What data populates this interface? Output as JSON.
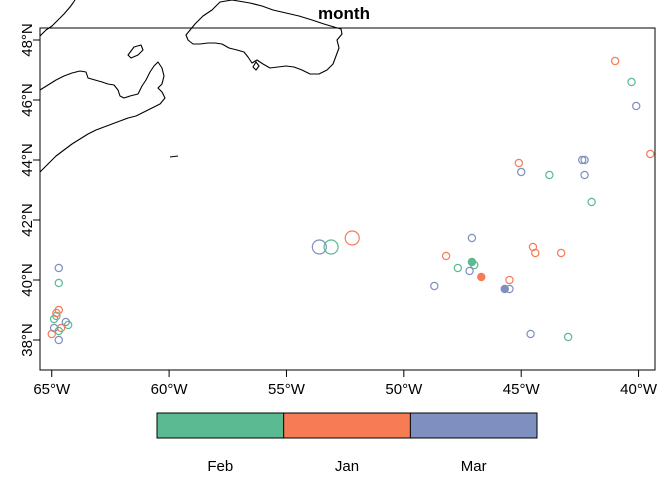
{
  "chart_data": {
    "type": "scatter",
    "title": "month",
    "xlim": [
      -65.5,
      -39.3
    ],
    "ylim": [
      37,
      48.4
    ],
    "x_ticks": [
      -65,
      -60,
      -55,
      -50,
      -45,
      -40
    ],
    "x_tick_labels": [
      "65°W",
      "60°W",
      "55°W",
      "50°W",
      "45°W",
      "40°W"
    ],
    "y_ticks": [
      38,
      40,
      42,
      44,
      46,
      48
    ],
    "y_tick_labels": [
      "38°N",
      "40°N",
      "42°N",
      "44°N",
      "46°N",
      "48°N"
    ],
    "grid": false,
    "coastline": "Nova Scotia, Cape Breton and Newfoundland outlines in the upper left",
    "legend": {
      "placement": "bottom",
      "entries": [
        {
          "label": "Feb",
          "color": "#5BBA92"
        },
        {
          "label": "Jan",
          "color": "#F77B55"
        },
        {
          "label": "Mar",
          "color": "#7F8FC0"
        }
      ]
    },
    "series": [
      {
        "name": "Feb",
        "color": "#5BBA92",
        "points": [
          {
            "lon": -64.7,
            "lat": 39.9
          },
          {
            "lon": -64.9,
            "lat": 38.7
          },
          {
            "lon": -64.8,
            "lat": 38.8
          },
          {
            "lon": -64.3,
            "lat": 38.5
          },
          {
            "lon": -64.7,
            "lat": 38.3
          },
          {
            "lon": -53.1,
            "lat": 41.1,
            "size": "large"
          },
          {
            "lon": -47.7,
            "lat": 40.4
          },
          {
            "lon": -47.0,
            "lat": 40.5
          },
          {
            "lon": -47.1,
            "lat": 40.6,
            "filled": true
          },
          {
            "lon": -43.8,
            "lat": 43.5
          },
          {
            "lon": -42.0,
            "lat": 42.6
          },
          {
            "lon": -43.0,
            "lat": 38.1
          },
          {
            "lon": -40.3,
            "lat": 46.6
          }
        ]
      },
      {
        "name": "Jan",
        "color": "#F77B55",
        "points": [
          {
            "lon": -64.7,
            "lat": 39.0
          },
          {
            "lon": -64.8,
            "lat": 38.9
          },
          {
            "lon": -64.6,
            "lat": 38.4
          },
          {
            "lon": -65.0,
            "lat": 38.2
          },
          {
            "lon": -52.2,
            "lat": 41.4,
            "size": "large"
          },
          {
            "lon": -48.2,
            "lat": 40.8
          },
          {
            "lon": -46.7,
            "lat": 40.1,
            "filled": true
          },
          {
            "lon": -45.5,
            "lat": 40.0
          },
          {
            "lon": -44.4,
            "lat": 40.9
          },
          {
            "lon": -44.5,
            "lat": 41.1
          },
          {
            "lon": -43.3,
            "lat": 40.9
          },
          {
            "lon": -45.1,
            "lat": 43.9
          },
          {
            "lon": -41.0,
            "lat": 47.3
          },
          {
            "lon": -39.5,
            "lat": 44.2
          }
        ]
      },
      {
        "name": "Mar",
        "color": "#7F8FC0",
        "points": [
          {
            "lon": -64.7,
            "lat": 40.4
          },
          {
            "lon": -64.4,
            "lat": 38.6
          },
          {
            "lon": -64.9,
            "lat": 38.4
          },
          {
            "lon": -64.7,
            "lat": 38.0
          },
          {
            "lon": -53.6,
            "lat": 41.1,
            "size": "large"
          },
          {
            "lon": -48.7,
            "lat": 39.8
          },
          {
            "lon": -47.2,
            "lat": 40.3
          },
          {
            "lon": -47.1,
            "lat": 41.4
          },
          {
            "lon": -45.5,
            "lat": 39.7
          },
          {
            "lon": -45.7,
            "lat": 39.7,
            "filled": true
          },
          {
            "lon": -45.0,
            "lat": 43.6
          },
          {
            "lon": -44.6,
            "lat": 38.2
          },
          {
            "lon": -42.3,
            "lat": 44.0
          },
          {
            "lon": -42.3,
            "lat": 43.5
          },
          {
            "lon": -42.4,
            "lat": 44.0
          },
          {
            "lon": -40.1,
            "lat": 45.8
          }
        ]
      }
    ]
  }
}
